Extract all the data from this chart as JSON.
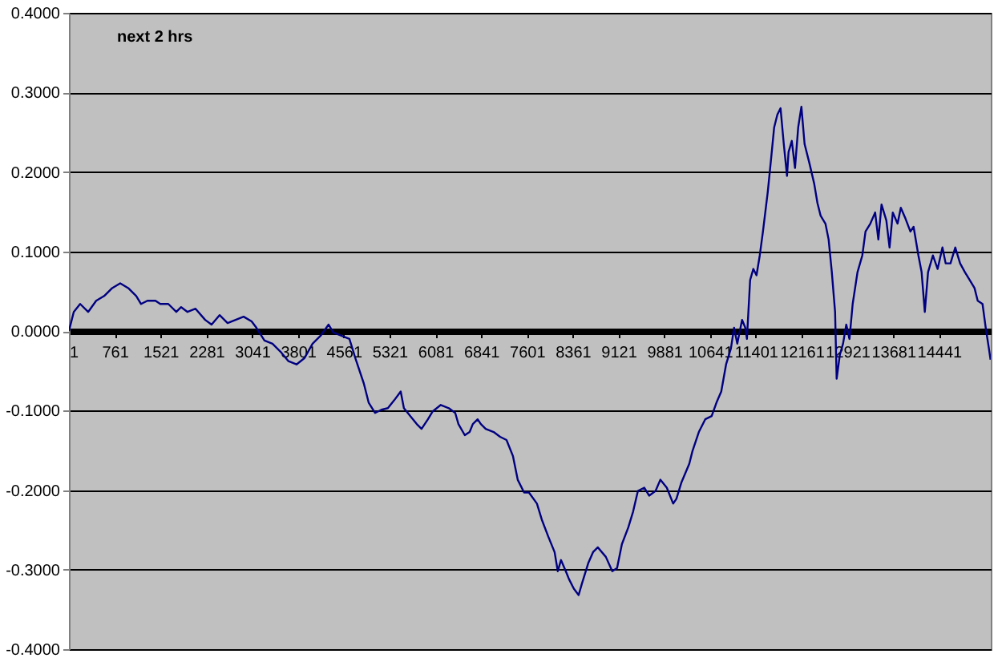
{
  "chart_data": {
    "type": "line",
    "annotations": [
      "next 2 hrs"
    ],
    "x": [
      1,
      81,
      187,
      320,
      453,
      586,
      719,
      852,
      985,
      1118,
      1198,
      1304,
      1437,
      1517,
      1650,
      1783,
      1863,
      1969,
      2102,
      2262,
      2368,
      2501,
      2634,
      2767,
      2900,
      3033,
      3113,
      3246,
      3379,
      3512,
      3645,
      3778,
      3911,
      4044,
      4177,
      4310,
      4390,
      4523,
      4656,
      4762,
      4895,
      4975,
      5081,
      5188,
      5294,
      5400,
      5507,
      5560,
      5667,
      5773,
      5853,
      5959,
      6039,
      6172,
      6305,
      6412,
      6465,
      6571,
      6651,
      6704,
      6784,
      6837,
      6917,
      7050,
      7156,
      7263,
      7369,
      7449,
      7555,
      7635,
      7768,
      7848,
      7954,
      8061,
      8114,
      8167,
      8247,
      8300,
      8380,
      8460,
      8513,
      8619,
      8699,
      8779,
      8912,
      9018,
      9098,
      9178,
      9284,
      9364,
      9444,
      9550,
      9630,
      9737,
      9816,
      9923,
      10029,
      10083,
      10163,
      10296,
      10349,
      10455,
      10561,
      10668,
      10748,
      10827,
      10907,
      10987,
      11040,
      11093,
      11173,
      11226,
      11253,
      11306,
      11359,
      11412,
      11466,
      11519,
      11599,
      11652,
      11705,
      11758,
      11811,
      11865,
      11918,
      11944,
      11998,
      12051,
      12104,
      12157,
      12210,
      12290,
      12370,
      12423,
      12476,
      12556,
      12609,
      12662,
      12716,
      12742,
      12795,
      12848,
      12902,
      12955,
      13008,
      13088,
      13168,
      13221,
      13301,
      13381,
      13434,
      13487,
      13567,
      13620,
      13674,
      13753,
      13807,
      13886,
      13966,
      14019,
      14099,
      14152,
      14205,
      14259,
      14339,
      14418,
      14498,
      14551,
      14631,
      14711,
      14791,
      14871,
      14950,
      15030,
      15083,
      15163,
      15216,
      15269,
      15296
    ],
    "series": [
      {
        "color": "#000080",
        "values": [
          0,
          0.024,
          0.034,
          0.024,
          0.038,
          0.044,
          0.054,
          0.06,
          0.054,
          0.044,
          0.034,
          0.038,
          0.038,
          0.034,
          0.034,
          0.024,
          0.03,
          0.024,
          0.028,
          0.014,
          0.008,
          0.02,
          0.01,
          0.014,
          0.018,
          0.012,
          0.004,
          -0.012,
          -0.016,
          -0.026,
          -0.038,
          -0.042,
          -0.034,
          -0.016,
          -0.006,
          0.008,
          -0.002,
          -0.006,
          -0.01,
          -0.036,
          -0.066,
          -0.09,
          -0.103,
          -0.099,
          -0.097,
          -0.087,
          -0.076,
          -0.097,
          -0.107,
          -0.117,
          -0.123,
          -0.111,
          -0.101,
          -0.093,
          -0.097,
          -0.103,
          -0.117,
          -0.131,
          -0.127,
          -0.117,
          -0.111,
          -0.117,
          -0.123,
          -0.127,
          -0.133,
          -0.137,
          -0.157,
          -0.187,
          -0.203,
          -0.203,
          -0.217,
          -0.237,
          -0.258,
          -0.278,
          -0.302,
          -0.288,
          -0.302,
          -0.312,
          -0.324,
          -0.332,
          -0.318,
          -0.292,
          -0.278,
          -0.272,
          -0.284,
          -0.302,
          -0.298,
          -0.268,
          -0.247,
          -0.227,
          -0.201,
          -0.197,
          -0.207,
          -0.201,
          -0.187,
          -0.197,
          -0.217,
          -0.211,
          -0.191,
          -0.167,
          -0.151,
          -0.127,
          -0.111,
          -0.107,
          -0.09,
          -0.076,
          -0.042,
          -0.022,
          0.004,
          -0.016,
          0.014,
          0.004,
          -0.01,
          0.064,
          0.078,
          0.07,
          0.095,
          0.125,
          0.175,
          0.215,
          0.256,
          0.272,
          0.28,
          0.235,
          0.195,
          0.225,
          0.239,
          0.205,
          0.256,
          0.282,
          0.235,
          0.211,
          0.185,
          0.161,
          0.145,
          0.135,
          0.115,
          0.074,
          0.024,
          -0.06,
          -0.03,
          -0.016,
          0.008,
          -0.01,
          0.034,
          0.074,
          0.095,
          0.125,
          0.135,
          0.149,
          0.115,
          0.159,
          0.139,
          0.105,
          0.149,
          0.135,
          0.155,
          0.141,
          0.125,
          0.131,
          0.095,
          0.074,
          0.024,
          0.074,
          0.095,
          0.078,
          0.105,
          0.085,
          0.085,
          0.105,
          0.085,
          0.074,
          0.064,
          0.054,
          0.038,
          0.034,
          0.004,
          -0.022,
          -0.036
        ]
      }
    ],
    "xlim": [
      1,
      15300
    ],
    "xticks": [
      1,
      761,
      1521,
      2281,
      3041,
      3801,
      4561,
      5321,
      6081,
      6841,
      7601,
      8361,
      9121,
      9881,
      10641,
      11401,
      12161,
      12921,
      13681,
      14441
    ],
    "ylim": [
      -0.4,
      0.4
    ],
    "yticks": [
      {
        "value": -0.4,
        "label": "-0.4000"
      },
      {
        "value": -0.3,
        "label": "-0.3000"
      },
      {
        "value": -0.2,
        "label": "-0.2000"
      },
      {
        "value": -0.1,
        "label": "-0.1000"
      },
      {
        "value": 0,
        "label": "0.0000"
      },
      {
        "value": 0.1,
        "label": "0.1000"
      },
      {
        "value": 0.2,
        "label": "0.2000"
      },
      {
        "value": 0.3,
        "label": "0.3000"
      },
      {
        "value": 0.4,
        "label": "0.4000"
      }
    ],
    "grid": "y",
    "marker": "none",
    "line_style": "solid"
  }
}
